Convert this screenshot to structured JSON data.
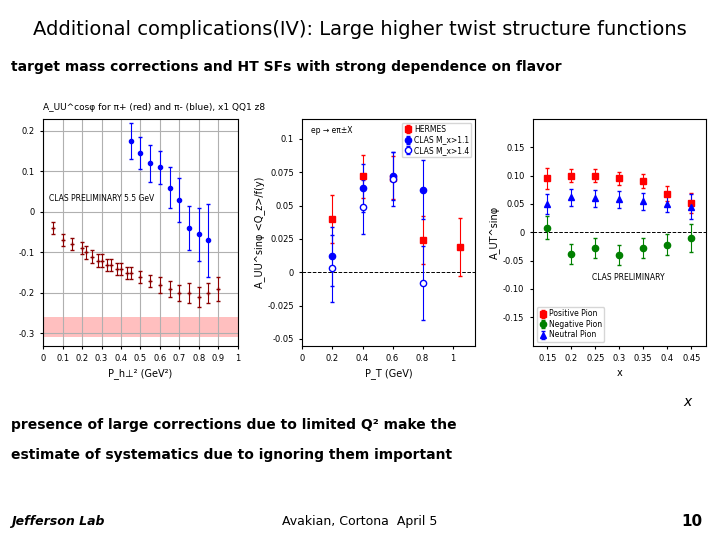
{
  "title": "Additional complications(IV): Large higher twist structure functions",
  "subtitle": "target mass corrections and HT SFs with strong dependence on flavor",
  "body": [
    "presence of large corrections due to limited Q² make the",
    "estimate of systematics due to ignoring them important"
  ],
  "footer": [
    "Jefferson Lab",
    "Avakian, Cortona  April 5",
    "10"
  ],
  "annotations": [
    "x"
  ],
  "chart_data": [
    {
      "type": "scatter",
      "title": "A_UU^cosφ for π+ (red) and π- (blue), x1 QQ1 z8",
      "x_label": "P_h⊥² (GeV²)",
      "annotations": [
        "CLAS PRELIMINARY 5.5 GeV"
      ],
      "xlim": [
        0,
        1
      ],
      "xticks": [
        0,
        0.1,
        0.2,
        0.3,
        0.4,
        0.5,
        0.6,
        0.7,
        0.8,
        0.9,
        1
      ],
      "ylim": [
        -0.33,
        0.23
      ],
      "yticks": [
        -0.3,
        -0.2,
        -0.1,
        0,
        0.1,
        0.2
      ],
      "grid": true,
      "hline": 0,
      "series": [
        {
          "color": "blue",
          "marker": "circle",
          "x": [
            0.45,
            0.5,
            0.55,
            0.6,
            0.65,
            0.7,
            0.75,
            0.8,
            0.85
          ],
          "values": [
            0.175,
            0.145,
            0.12,
            0.11,
            0.06,
            0.03,
            -0.04,
            -0.055,
            -0.07
          ],
          "errors": [
            0.045,
            0.04,
            0.045,
            0.04,
            0.05,
            0.055,
            0.055,
            0.065,
            0.09
          ]
        },
        {
          "color": "#8b0000",
          "marker": "plus",
          "x": [
            0.05,
            0.1,
            0.15,
            0.2,
            0.22,
            0.25,
            0.28,
            0.3,
            0.33,
            0.35,
            0.38,
            0.4,
            0.43,
            0.45,
            0.5,
            0.55,
            0.6,
            0.65,
            0.7,
            0.75,
            0.8,
            0.85,
            0.9
          ],
          "values": [
            -0.04,
            -0.07,
            -0.08,
            -0.09,
            -0.1,
            -0.11,
            -0.12,
            -0.12,
            -0.13,
            -0.13,
            -0.14,
            -0.14,
            -0.15,
            -0.15,
            -0.16,
            -0.17,
            -0.18,
            -0.19,
            -0.2,
            -0.2,
            -0.21,
            -0.2,
            -0.19
          ],
          "errors": [
            0.015,
            0.015,
            0.015,
            0.015,
            0.015,
            0.015,
            0.015,
            0.015,
            0.015,
            0.015,
            0.015,
            0.015,
            0.015,
            0.015,
            0.015,
            0.015,
            0.02,
            0.02,
            0.02,
            0.025,
            0.025,
            0.025,
            0.03
          ]
        },
        {
          "type": "band",
          "color": "#ff8080",
          "x": [
            0,
            1
          ],
          "lower": [
            -0.31,
            -0.31
          ],
          "upper": [
            -0.26,
            -0.26
          ]
        }
      ]
    },
    {
      "type": "scatter",
      "x_label": "P_T (GeV)",
      "y_label": "A_UU^sinφ <Q_z>/f(y)",
      "annotations": [
        "ep → eπ±X"
      ],
      "xlim": [
        0,
        1.15
      ],
      "xticks": [
        0,
        0.2,
        0.4,
        0.6,
        0.8,
        1
      ],
      "ylim": [
        -0.055,
        0.115
      ],
      "yticks": [
        -0.05,
        -0.025,
        0,
        0.025,
        0.05,
        0.075,
        0.1
      ],
      "grid": false,
      "legend": "upper right",
      "hline": 0,
      "series": [
        {
          "name": "HERMES",
          "color": "red",
          "marker": "square",
          "x": [
            0.2,
            0.4,
            0.6,
            0.8,
            1.05
          ],
          "values": [
            0.04,
            0.072,
            0.071,
            0.024,
            0.019
          ],
          "errors": [
            0.018,
            0.016,
            0.016,
            0.018,
            0.022
          ]
        },
        {
          "name": "CLAS M_x>1.1",
          "color": "blue",
          "marker": "circle",
          "x": [
            0.2,
            0.4,
            0.6,
            0.8
          ],
          "values": [
            0.012,
            0.063,
            0.072,
            0.062
          ],
          "errors": [
            0.022,
            0.018,
            0.018,
            0.022
          ]
        },
        {
          "name": "CLAS M_x>1.4",
          "color": "blue",
          "marker": "open_circle",
          "x": [
            0.2,
            0.4,
            0.6,
            0.8
          ],
          "values": [
            0.003,
            0.049,
            0.07,
            -0.008
          ],
          "errors": [
            0.025,
            0.02,
            0.02,
            0.028
          ]
        }
      ]
    },
    {
      "type": "scatter",
      "x_label": "x",
      "y_label": "A_UT^sinφ",
      "annotations": [
        "CLAS PRELIMINARY"
      ],
      "xlim": [
        0.12,
        0.48
      ],
      "xticks": [
        0.15,
        0.2,
        0.25,
        0.3,
        0.35,
        0.4,
        0.45
      ],
      "ylim": [
        -0.2,
        0.2
      ],
      "yticks": [
        -0.15,
        {
          "value": -0.1,
          "label": "-0.10"
        },
        -0.05,
        0,
        0.05,
        {
          "value": 0.1,
          "label": "0.10"
        },
        0.15
      ],
      "grid": false,
      "legend": "lower left",
      "hline": 0,
      "series": [
        {
          "name": "Positive Pion",
          "color": "red",
          "marker": "square",
          "x": [
            0.15,
            0.2,
            0.25,
            0.3,
            0.35,
            0.4,
            0.45
          ],
          "values": [
            0.095,
            0.1,
            0.1,
            0.095,
            0.09,
            0.068,
            0.052
          ],
          "errors": [
            0.018,
            0.012,
            0.012,
            0.012,
            0.012,
            0.013,
            0.018
          ]
        },
        {
          "name": "Negative Pion",
          "color": "green",
          "marker": "circle",
          "x": [
            0.15,
            0.2,
            0.25,
            0.3,
            0.35,
            0.4,
            0.45
          ],
          "values": [
            0.008,
            -0.038,
            -0.028,
            -0.04,
            -0.028,
            -0.022,
            -0.01
          ],
          "errors": [
            0.02,
            0.018,
            0.018,
            0.018,
            0.018,
            0.018,
            0.025
          ]
        },
        {
          "name": "Neutral Pion",
          "color": "blue",
          "marker": "triangle",
          "x": [
            0.15,
            0.2,
            0.25,
            0.3,
            0.35,
            0.4,
            0.45
          ],
          "values": [
            0.05,
            0.062,
            0.06,
            0.058,
            0.055,
            0.05,
            0.045
          ],
          "errors": [
            0.018,
            0.015,
            0.015,
            0.015,
            0.015,
            0.015,
            0.022
          ]
        }
      ]
    }
  ]
}
